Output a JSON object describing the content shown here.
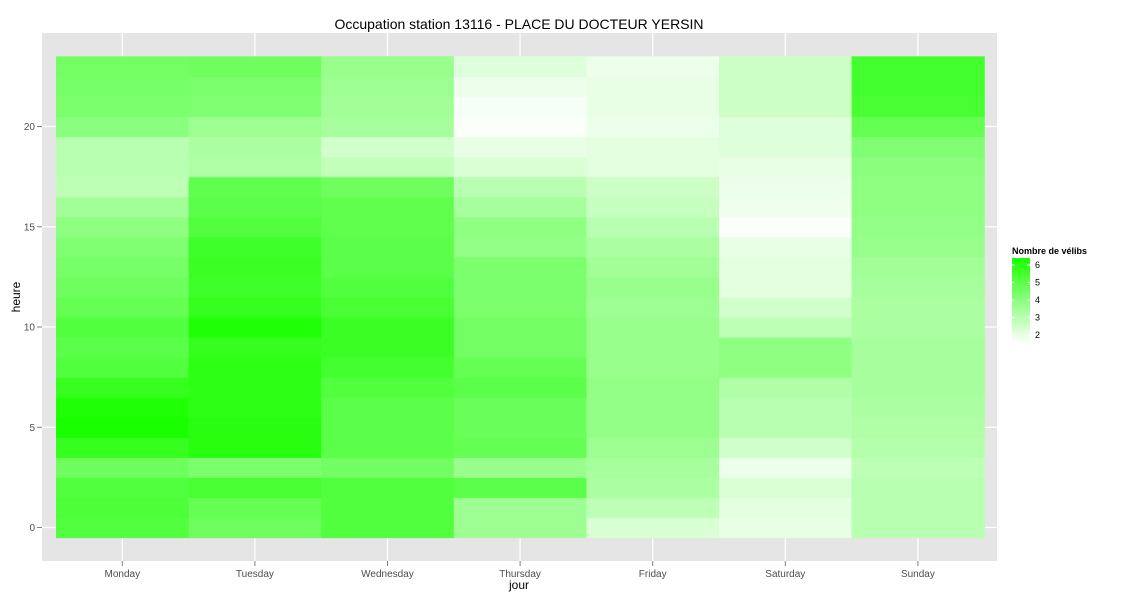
{
  "chart_data": {
    "type": "heatmap",
    "title": "Occupation station 13116 - PLACE DU DOCTEUR YERSIN",
    "xlabel": "jour",
    "ylabel": "heure",
    "x_categories": [
      "Monday",
      "Tuesday",
      "Wednesday",
      "Thursday",
      "Friday",
      "Saturday",
      "Sunday"
    ],
    "y_values": [
      0,
      1,
      2,
      3,
      4,
      5,
      6,
      7,
      8,
      9,
      10,
      11,
      12,
      13,
      14,
      15,
      16,
      17,
      18,
      19,
      20,
      21,
      22,
      23
    ],
    "y_ticks": [
      0,
      5,
      10,
      15,
      20
    ],
    "ylim": [
      -0.5,
      23.5
    ],
    "grid": true,
    "legend": {
      "title": "Nombre de vélibs",
      "ticks": [
        2,
        3,
        4,
        5,
        6
      ],
      "min": 1.5,
      "max": 6.4,
      "low_color": "#ffffff",
      "high_color": "#1aff00",
      "position": "right"
    },
    "values": {
      "Monday": [
        5.2,
        5.3,
        5.2,
        4.6,
        5.8,
        6.4,
        6.3,
        5.8,
        5.2,
        5.0,
        5.2,
        4.8,
        4.6,
        4.4,
        4.2,
        3.9,
        3.5,
        2.9,
        3.0,
        3.0,
        4.0,
        4.3,
        4.4,
        4.5
      ],
      "Tuesday": [
        4.6,
        4.8,
        5.4,
        4.3,
        6.1,
        6.1,
        6.0,
        6.0,
        6.0,
        5.8,
        6.3,
        5.8,
        5.6,
        5.7,
        5.6,
        5.2,
        5.0,
        4.9,
        3.2,
        3.3,
        3.6,
        4.2,
        4.3,
        4.6
      ],
      "Wednesday": [
        5.2,
        5.2,
        5.2,
        4.5,
        5.0,
        5.0,
        5.0,
        5.2,
        5.5,
        5.7,
        5.7,
        5.4,
        5.2,
        5.0,
        5.0,
        4.9,
        4.9,
        4.6,
        2.8,
        2.5,
        3.4,
        3.5,
        3.6,
        3.7
      ],
      "Thursday": [
        3.6,
        3.6,
        5.0,
        3.7,
        4.8,
        4.7,
        4.7,
        5.0,
        4.8,
        4.5,
        4.5,
        4.3,
        4.3,
        4.3,
        3.8,
        3.9,
        3.4,
        3.0,
        2.3,
        2.0,
        1.6,
        1.7,
        1.9,
        2.2
      ],
      "Friday": [
        2.3,
        2.9,
        3.3,
        3.4,
        3.6,
        3.8,
        3.8,
        3.8,
        3.7,
        3.7,
        3.7,
        3.6,
        3.7,
        3.5,
        3.3,
        3.0,
        2.7,
        2.6,
        2.1,
        2.1,
        1.9,
        2.0,
        2.0,
        1.9
      ],
      "Saturday": [
        2.0,
        2.1,
        2.3,
        1.9,
        2.5,
        3.0,
        3.0,
        3.2,
        3.9,
        3.9,
        2.9,
        2.5,
        2.1,
        2.1,
        2.0,
        1.6,
        1.8,
        1.9,
        2.0,
        2.2,
        2.2,
        2.6,
        2.6,
        2.6
      ],
      "Sunday": [
        3.0,
        3.0,
        3.0,
        2.9,
        3.1,
        3.2,
        3.3,
        3.4,
        3.4,
        3.4,
        3.3,
        3.3,
        3.4,
        3.5,
        3.7,
        3.8,
        3.9,
        3.9,
        4.0,
        4.2,
        4.8,
        5.4,
        5.5,
        5.5
      ]
    }
  }
}
